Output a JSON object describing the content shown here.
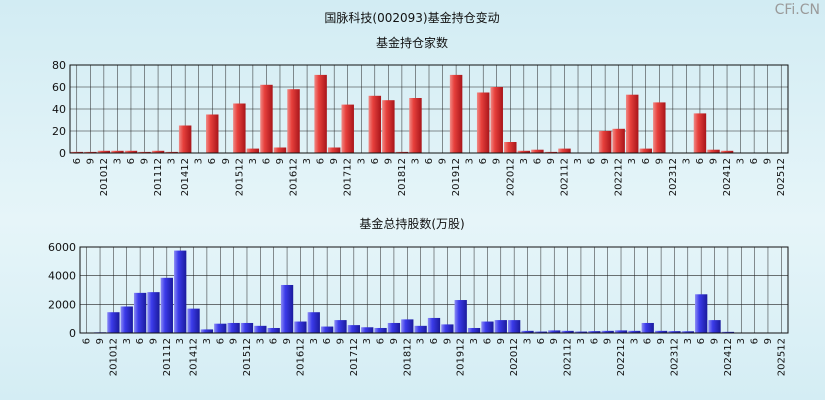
{
  "page": {
    "title": "国脉科技(002093)基金持仓变动",
    "brand": "CFi.CN"
  },
  "chart_data": [
    {
      "type": "bar",
      "title": "基金持仓家数",
      "ylim": [
        0,
        80
      ],
      "yticks": [
        0,
        20,
        40,
        60,
        80
      ],
      "grid": true,
      "color": "#e0302e",
      "categories": [
        "6",
        "9",
        "201012",
        "3",
        "6",
        "9",
        "201112",
        "3",
        "201412",
        "3",
        "6",
        "9",
        "201512",
        "3",
        "6",
        "9",
        "201612",
        "3",
        "6",
        "9",
        "201712",
        "3",
        "6",
        "9",
        "201812",
        "3",
        "6",
        "9",
        "201912",
        "3",
        "6",
        "9",
        "202012",
        "3",
        "6",
        "9",
        "202112",
        "3",
        "6",
        "9",
        "202212",
        "3",
        "6",
        "9",
        "202312",
        "3",
        "6",
        "9",
        "202412",
        "3",
        "6",
        "9",
        "202512"
      ],
      "values": [
        1,
        1,
        2,
        2,
        2,
        1,
        2,
        1,
        25,
        0,
        35,
        0,
        45,
        4,
        62,
        5,
        58,
        0,
        71,
        5,
        44,
        0,
        52,
        48,
        1,
        50,
        0,
        0,
        71,
        0,
        55,
        60,
        10,
        2,
        3,
        1,
        4,
        0,
        0,
        20,
        22,
        53,
        4,
        46,
        0,
        0,
        36,
        3,
        2,
        0,
        0,
        0,
        0
      ]
    },
    {
      "type": "bar",
      "title": "基金总持股数(万股)",
      "ylim": [
        0,
        6000
      ],
      "yticks": [
        0,
        2000,
        4000,
        6000
      ],
      "grid": true,
      "color": "#2f2fe6",
      "categories": [
        "6",
        "9",
        "201012",
        "3",
        "6",
        "9",
        "201112",
        "3",
        "201412",
        "3",
        "6",
        "9",
        "201512",
        "3",
        "6",
        "9",
        "201612",
        "3",
        "6",
        "9",
        "201712",
        "3",
        "6",
        "9",
        "201812",
        "3",
        "6",
        "9",
        "201912",
        "3",
        "6",
        "9",
        "202012",
        "3",
        "6",
        "9",
        "202112",
        "3",
        "6",
        "9",
        "202212",
        "3",
        "6",
        "9",
        "202312",
        "3",
        "6",
        "9",
        "202412",
        "3",
        "6",
        "9",
        "202512"
      ],
      "values": [
        20,
        50,
        1450,
        1850,
        2800,
        2850,
        3850,
        5750,
        1700,
        250,
        650,
        700,
        700,
        500,
        350,
        3350,
        800,
        1450,
        450,
        900,
        550,
        400,
        350,
        700,
        950,
        500,
        1050,
        600,
        2300,
        350,
        800,
        900,
        900,
        150,
        100,
        180,
        150,
        100,
        130,
        150,
        180,
        150,
        700,
        150,
        130,
        120,
        2700,
        900,
        80,
        0,
        0,
        0,
        0
      ]
    }
  ]
}
